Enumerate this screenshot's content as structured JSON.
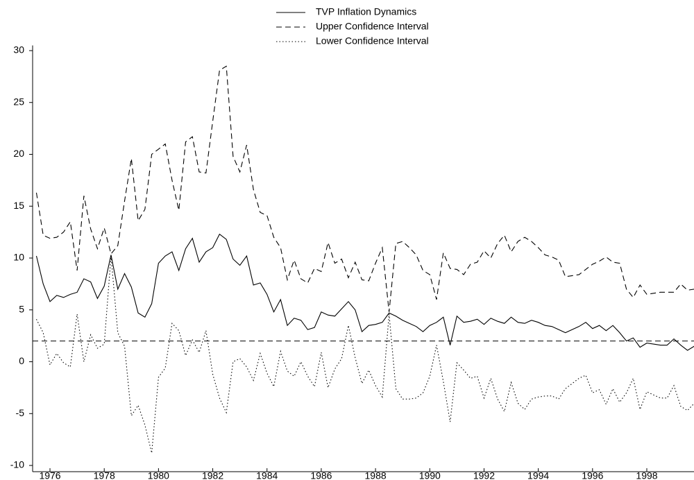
{
  "chart_data": {
    "type": "line",
    "x": [
      1975.5,
      1975.75,
      1976,
      1976.25,
      1976.5,
      1976.75,
      1977,
      1977.25,
      1977.5,
      1977.75,
      1978,
      1978.25,
      1978.5,
      1978.75,
      1979,
      1979.25,
      1979.5,
      1979.75,
      1980,
      1980.25,
      1980.5,
      1980.75,
      1981,
      1981.25,
      1981.5,
      1981.75,
      1982,
      1982.25,
      1982.5,
      1982.75,
      1983,
      1983.25,
      1983.5,
      1983.75,
      1984,
      1984.25,
      1984.5,
      1984.75,
      1985,
      1985.25,
      1985.5,
      1985.75,
      1986,
      1986.25,
      1986.5,
      1986.75,
      1987,
      1987.25,
      1987.5,
      1987.75,
      1988,
      1988.25,
      1988.5,
      1988.75,
      1989,
      1989.25,
      1989.5,
      1989.75,
      1990,
      1990.25,
      1990.5,
      1990.75,
      1991,
      1991.25,
      1991.5,
      1991.75,
      1992,
      1992.25,
      1992.5,
      1992.75,
      1993,
      1993.25,
      1993.5,
      1993.75,
      1994,
      1994.25,
      1994.5,
      1994.75,
      1995,
      1995.25,
      1995.5,
      1995.75,
      1996,
      1996.25,
      1996.5,
      1996.75,
      1997,
      1997.25,
      1997.5,
      1997.75,
      1998,
      1998.25,
      1998.5,
      1998.75,
      1999,
      1999.25,
      1999.5,
      1999.75
    ],
    "series": [
      {
        "name": "TVP Inflation Dynamics",
        "color": "#000000",
        "dash": "solid",
        "values": [
          10.2,
          7.5,
          5.8,
          6.4,
          6.2,
          6.5,
          6.7,
          8.0,
          7.7,
          6.1,
          7.3,
          10.3,
          7.0,
          8.5,
          7.2,
          4.7,
          4.3,
          5.6,
          9.5,
          10.2,
          10.6,
          8.8,
          10.9,
          11.9,
          9.6,
          10.6,
          11.0,
          12.3,
          11.8,
          9.9,
          9.3,
          10.2,
          7.4,
          7.6,
          6.5,
          4.8,
          6.0,
          3.5,
          4.2,
          4.0,
          3.1,
          3.3,
          4.8,
          4.5,
          4.4,
          5.1,
          5.8,
          5.0,
          2.9,
          3.5,
          3.6,
          3.8,
          4.7,
          4.4,
          4.0,
          3.7,
          3.4,
          2.9,
          3.5,
          3.8,
          4.3,
          1.6,
          4.4,
          3.8,
          3.9,
          4.1,
          3.6,
          4.2,
          3.9,
          3.7,
          4.3,
          3.8,
          3.7,
          4.0,
          3.8,
          3.5,
          3.4,
          3.1,
          2.8,
          3.1,
          3.4,
          3.8,
          3.2,
          3.5,
          3.0,
          3.5,
          2.8,
          2.0,
          2.3,
          1.4,
          1.8,
          1.7,
          1.6,
          1.6,
          2.2,
          1.6,
          1.1,
          1.5
        ]
      },
      {
        "name": "Upper Confidence Interval",
        "color": "#000000",
        "dash": "dashed",
        "values": [
          16.3,
          12.2,
          11.9,
          12.0,
          12.5,
          13.5,
          8.8,
          16.0,
          12.8,
          10.9,
          12.9,
          10.4,
          11.2,
          15.5,
          19.6,
          13.6,
          14.7,
          20.0,
          20.5,
          21.0,
          17.5,
          14.6,
          21.2,
          21.7,
          18.3,
          18.2,
          23.2,
          28.1,
          28.5,
          19.8,
          18.3,
          20.9,
          16.6,
          14.4,
          14.1,
          12.0,
          11.0,
          7.9,
          9.8,
          8.0,
          7.6,
          9.0,
          8.7,
          11.5,
          9.5,
          9.9,
          8.1,
          9.6,
          7.9,
          7.8,
          9.5,
          11.0,
          4.8,
          11.4,
          11.6,
          11.0,
          10.3,
          8.8,
          8.4,
          6.0,
          10.5,
          9.0,
          8.9,
          8.4,
          9.4,
          9.6,
          10.7,
          10.0,
          11.4,
          12.2,
          10.6,
          11.6,
          12.0,
          11.6,
          11.0,
          10.3,
          10.1,
          9.8,
          8.2,
          8.3,
          8.4,
          8.9,
          9.4,
          9.7,
          10.1,
          9.6,
          9.5,
          7.0,
          6.2,
          7.4,
          6.5,
          6.6,
          6.7,
          6.7,
          6.7,
          7.5,
          6.9,
          7.0
        ]
      },
      {
        "name": "Lower Confidence Interval",
        "color": "#000000",
        "dash": "dotted",
        "values": [
          4.1,
          2.8,
          -0.3,
          0.8,
          -0.1,
          -0.5,
          4.6,
          0.0,
          2.6,
          1.3,
          1.7,
          10.2,
          2.8,
          1.5,
          -5.2,
          -4.2,
          -6.1,
          -8.8,
          -1.5,
          -0.6,
          3.7,
          3.0,
          0.6,
          2.1,
          0.9,
          3.0,
          -1.2,
          -3.5,
          -4.9,
          0.0,
          0.3,
          -0.5,
          -1.8,
          0.8,
          -1.1,
          -2.4,
          1.0,
          -0.9,
          -1.4,
          0.0,
          -1.4,
          -2.4,
          0.9,
          -2.5,
          -0.7,
          0.3,
          3.5,
          0.4,
          -2.1,
          -0.8,
          -2.3,
          -3.4,
          4.6,
          -2.6,
          -3.6,
          -3.6,
          -3.5,
          -3.0,
          -1.4,
          1.6,
          -1.9,
          -5.8,
          -0.1,
          -0.8,
          -1.6,
          -1.4,
          -3.5,
          -1.6,
          -3.6,
          -4.8,
          -2.0,
          -4.0,
          -4.6,
          -3.6,
          -3.4,
          -3.3,
          -3.3,
          -3.6,
          -2.6,
          -2.1,
          -1.6,
          -1.3,
          -3.0,
          -2.7,
          -4.1,
          -2.6,
          -3.9,
          -3.0,
          -1.6,
          -4.6,
          -2.9,
          -3.2,
          -3.5,
          -3.5,
          -2.3,
          -4.3,
          -4.7,
          -4.0
        ]
      }
    ],
    "reference_line": 2,
    "xlim": [
      1975.36,
      1999.74
    ],
    "xticks": [
      1976,
      1978,
      1980,
      1982,
      1984,
      1986,
      1988,
      1990,
      1992,
      1994,
      1996,
      1998
    ],
    "ylim": [
      -10.6,
      30.5
    ],
    "yticks": [
      -10,
      -5,
      0,
      5,
      10,
      15,
      20,
      25,
      30
    ],
    "legend": "top"
  }
}
